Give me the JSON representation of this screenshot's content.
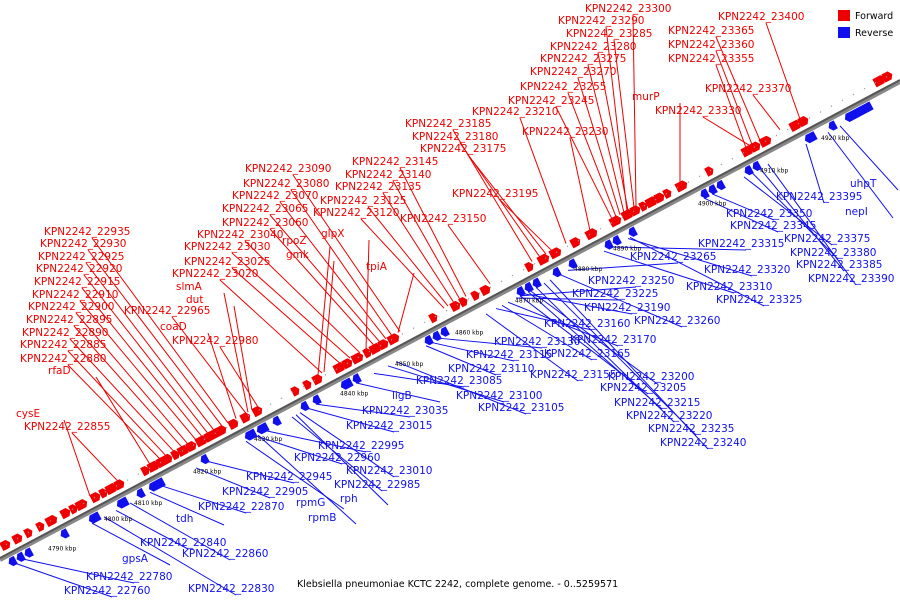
{
  "caption": "Klebsiella pneumoniae KCTC 2242, complete genome. - 0..5259571",
  "legend": [
    {
      "label": "Forward",
      "color": "#ee0000"
    },
    {
      "label": "Reverse",
      "color": "#1010ee"
    }
  ],
  "ticks": [
    "4790 kbp",
    "4800 kbp",
    "4810 kbp",
    "4820 kbp",
    "4830 kbp",
    "4840 kbp",
    "4850 kbp",
    "4860 kbp",
    "4870 kbp",
    "4880 kbp",
    "4890 kbp",
    "4900 kbp",
    "4910 kbp",
    "4920 kbp"
  ],
  "forward_labels": [
    "KPN2242_23300",
    "KPN2242_23290",
    "KPN2242_23285",
    "KPN2242_23280",
    "KPN2242_23275",
    "KPN2242_23270",
    "KPN2242_23255",
    "KPN2242_23245",
    "KPN2242_23210",
    "KPN2242_23230",
    "KPN2242_23185",
    "KPN2242_23180",
    "KPN2242_23175",
    "KPN2242_23195",
    "KPN2242_23145",
    "KPN2242_23140",
    "KPN2242_23135",
    "KPN2242_23125",
    "KPN2242_23120",
    "KPN2242_23150",
    "KPN2242_23090",
    "KPN2242_23080",
    "KPN2242_23070",
    "KPN2242_23065",
    "KPN2242_23060",
    "KPN2242_23040",
    "KPN2242_23030",
    "KPN2242_23025",
    "KPN2242_23020",
    "KPN2242_22935",
    "KPN2242_22930",
    "KPN2242_22925",
    "KPN2242_22920",
    "KPN2242_22915",
    "KPN2242_22910",
    "KPN2242_22900",
    "KPN2242_22895",
    "KPN2242_22890",
    "KPN2242_22885",
    "KPN2242_22880",
    "KPN2242_22965",
    "KPN2242_22980",
    "KPN2242_22855",
    "KPN2242_23400",
    "KPN2242_23365",
    "KPN2242_23360",
    "KPN2242_23355",
    "KPN2242_23370",
    "KPN2242_23330",
    "murP",
    "rpoZ",
    "gmk",
    "glpX",
    "tpiA",
    "slmA",
    "dut",
    "coaD",
    "rfaD",
    "cysE"
  ],
  "reverse_labels": [
    "KPN2242_22760",
    "KPN2242_22780",
    "gpsA",
    "KPN2242_22840",
    "KPN2242_22860",
    "KPN2242_22830",
    "tdh",
    "KPN2242_22870",
    "KPN2242_22905",
    "rpmG",
    "rpmB",
    "KPN2242_22945",
    "KPN2242_22960",
    "KPN2242_22995",
    "KPN2242_23010",
    "KPN2242_22985",
    "rph",
    "KPN2242_23015",
    "KPN2242_23035",
    "ligB",
    "KPN2242_23085",
    "KPN2242_23100",
    "KPN2242_23105",
    "KPN2242_23110",
    "KPN2242_23115",
    "KPN2242_23130",
    "KPN2242_23155",
    "KPN2242_23160",
    "KPN2242_23165",
    "KPN2242_23170",
    "KPN2242_23190",
    "KPN2242_23200",
    "KPN2242_23205",
    "KPN2242_23215",
    "KPN2242_23220",
    "KPN2242_23225",
    "KPN2242_23235",
    "KPN2242_23240",
    "KPN2242_23250",
    "KPN2242_23260",
    "KPN2242_23265",
    "KPN2242_23310",
    "KPN2242_23315",
    "KPN2242_23320",
    "KPN2242_23325",
    "KPN2242_23345",
    "KPN2242_23350",
    "KPN2242_23375",
    "KPN2242_23380",
    "KPN2242_23385",
    "KPN2242_23390",
    "KPN2242_23395",
    "nepI",
    "uhpT"
  ]
}
